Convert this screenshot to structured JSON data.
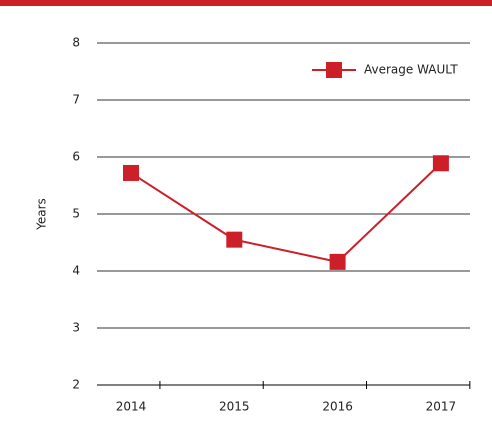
{
  "chart_data": {
    "type": "line",
    "y_label": "Years",
    "categories": [
      "2014",
      "2015",
      "2016",
      "2017"
    ],
    "series": [
      {
        "name": "Average WAULT",
        "color": "#cc1f28",
        "values": [
          5.72,
          4.55,
          4.16,
          5.89
        ]
      }
    ],
    "ylim": [
      2,
      8
    ],
    "yticks": [
      2,
      3,
      4,
      5,
      6,
      7,
      8
    ],
    "grid": true,
    "legend": "upper right"
  }
}
